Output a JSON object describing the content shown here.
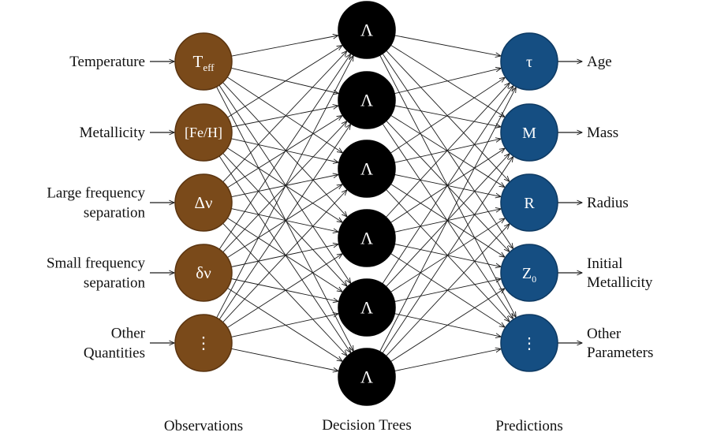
{
  "colors": {
    "observation_node": "#7a4a1a",
    "observation_stroke": "#5a3410",
    "tree_node": "#000000",
    "prediction_node": "#154e82",
    "prediction_stroke": "#0e3a63"
  },
  "columns": {
    "observations": "Observations",
    "trees": "Decision Trees",
    "predictions": "Predictions"
  },
  "observations": [
    {
      "symbol": "T",
      "subscript": "eff",
      "label_lines": [
        "Temperature"
      ]
    },
    {
      "symbol": "[Fe/H]",
      "subscript": "",
      "label_lines": [
        "Metallicity"
      ]
    },
    {
      "symbol": "Δν",
      "subscript": "",
      "label_lines": [
        "Large frequency",
        "separation"
      ]
    },
    {
      "symbol": "δν",
      "subscript": "",
      "label_lines": [
        "Small frequency",
        "separation"
      ]
    },
    {
      "symbol": "⋮",
      "subscript": "",
      "label_lines": [
        "Other",
        "Quantities"
      ]
    }
  ],
  "trees": [
    {
      "symbol": "Λ"
    },
    {
      "symbol": "Λ"
    },
    {
      "symbol": "Λ"
    },
    {
      "symbol": "Λ"
    },
    {
      "symbol": "Λ"
    },
    {
      "symbol": "Λ"
    }
  ],
  "predictions": [
    {
      "symbol": "τ",
      "subscript": "",
      "label_lines": [
        "Age"
      ]
    },
    {
      "symbol": "M",
      "subscript": "",
      "label_lines": [
        "Mass"
      ]
    },
    {
      "symbol": "R",
      "subscript": "",
      "label_lines": [
        "Radius"
      ]
    },
    {
      "symbol": "Z",
      "subscript": "0",
      "label_lines": [
        "Initial",
        "Metallicity"
      ]
    },
    {
      "symbol": "⋮",
      "subscript": "",
      "label_lines": [
        "Other",
        "Parameters"
      ]
    }
  ]
}
